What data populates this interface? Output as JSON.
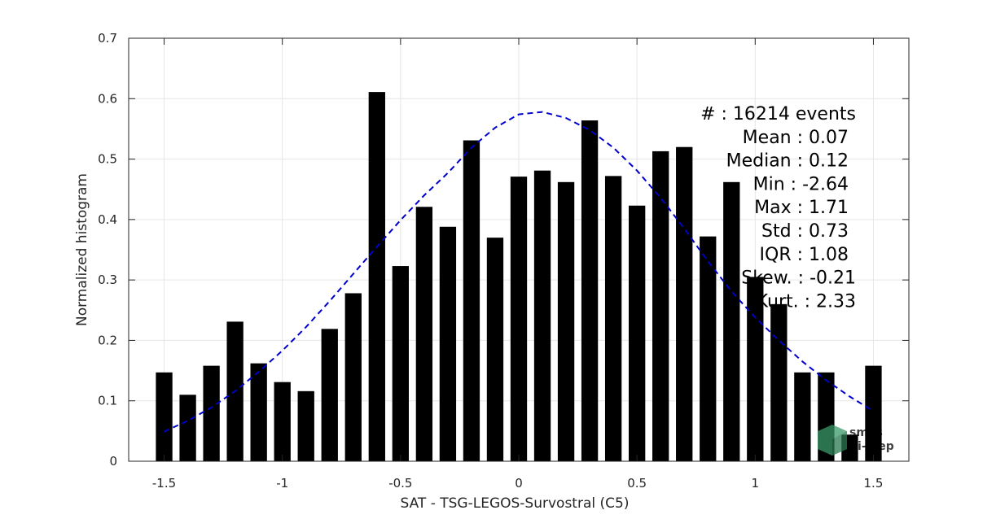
{
  "chart_data": {
    "type": "bar",
    "xlabel": "SAT - TSG-LEGOS-Survostral (C5)",
    "ylabel": "Normalized histogram",
    "xlim": [
      -1.65,
      1.65
    ],
    "ylim": [
      0,
      0.7
    ],
    "xticks": [
      -1.5,
      -1,
      -0.5,
      0,
      0.5,
      1,
      1.5
    ],
    "xtick_labels": [
      "-1.5",
      "-1",
      "-0.5",
      "0",
      "0.5",
      "1",
      "1.5"
    ],
    "yticks": [
      0,
      0.1,
      0.2,
      0.3,
      0.4,
      0.5,
      0.6,
      0.7
    ],
    "ytick_labels": [
      "0",
      "0.1",
      "0.2",
      "0.3",
      "0.4",
      "0.5",
      "0.6",
      "0.7"
    ],
    "grid": true,
    "bar_color": "#000000",
    "bar_width": 0.07,
    "bins": [
      -1.5,
      -1.4,
      -1.3,
      -1.2,
      -1.1,
      -1.0,
      -0.9,
      -0.8,
      -0.7,
      -0.6,
      -0.5,
      -0.4,
      -0.3,
      -0.2,
      -0.1,
      0.0,
      0.1,
      0.2,
      0.3,
      0.4,
      0.5,
      0.6,
      0.7,
      0.8,
      0.9,
      1.0,
      1.1,
      1.2,
      1.3,
      1.4,
      1.5
    ],
    "values": [
      0.147,
      0.11,
      0.158,
      0.231,
      0.162,
      0.131,
      0.116,
      0.219,
      0.278,
      0.611,
      0.323,
      0.421,
      0.388,
      0.531,
      0.37,
      0.471,
      0.481,
      0.462,
      0.564,
      0.472,
      0.423,
      0.513,
      0.52,
      0.372,
      0.462,
      0.305,
      0.26,
      0.147,
      0.147,
      0.044,
      0.158
    ],
    "fit_curve": {
      "style": "dashed",
      "color": "#0000cc",
      "x": [
        -1.5,
        -1.4,
        -1.3,
        -1.2,
        -1.1,
        -1.0,
        -0.9,
        -0.8,
        -0.7,
        -0.6,
        -0.5,
        -0.4,
        -0.3,
        -0.2,
        -0.1,
        0.0,
        0.1,
        0.2,
        0.3,
        0.4,
        0.5,
        0.6,
        0.7,
        0.8,
        0.9,
        1.0,
        1.1,
        1.2,
        1.3,
        1.4,
        1.5
      ],
      "y": [
        0.049,
        0.067,
        0.089,
        0.116,
        0.148,
        0.183,
        0.222,
        0.265,
        0.31,
        0.355,
        0.399,
        0.44,
        0.477,
        0.519,
        0.552,
        0.574,
        0.578,
        0.568,
        0.548,
        0.519,
        0.481,
        0.436,
        0.385,
        0.331,
        0.281,
        0.238,
        0.2,
        0.165,
        0.134,
        0.107,
        0.083
      ]
    },
    "stats": [
      "#   : 16214 events",
      "Mean : 0.07",
      "Median : 0.12",
      "Min : -2.64",
      "Max : 1.71",
      "Std : 0.73",
      "IQR : 1.08",
      "Skew. : -0.21",
      "Kurt. : 2.33"
    ]
  },
  "logo": {
    "line1": "smos",
    "line2": "pi-mep",
    "color": "#2e8b57"
  }
}
